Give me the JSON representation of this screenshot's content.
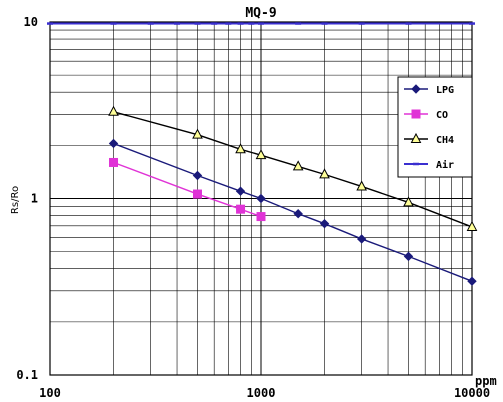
{
  "chart_data": {
    "type": "line",
    "title": "MQ-9",
    "ylabel": "Rs/Ro",
    "xunit": "ppm",
    "x_scale": "log",
    "y_scale": "log",
    "xlim": [
      100,
      10000
    ],
    "ylim": [
      0.1,
      10
    ],
    "x_ticks": [
      "100",
      "1000",
      "10000"
    ],
    "y_ticks": [
      "10",
      "1",
      "0.1"
    ],
    "grid": true,
    "legend_position": "right",
    "series": [
      {
        "name": "LPG",
        "color": "#1a1a7a",
        "marker": "diamond",
        "x": [
          200,
          500,
          800,
          1000,
          1500,
          2000,
          3000,
          5000,
          10000
        ],
        "y": [
          2.05,
          1.35,
          1.1,
          1.0,
          0.82,
          0.72,
          0.59,
          0.47,
          0.34
        ]
      },
      {
        "name": "CO",
        "color": "#e033d6",
        "marker": "square",
        "x": [
          200,
          500,
          800,
          1000
        ],
        "y": [
          1.6,
          1.06,
          0.87,
          0.79
        ]
      },
      {
        "name": "CH4",
        "color": "#000000",
        "marker": "triangle",
        "x": [
          200,
          500,
          800,
          1000,
          1500,
          2000,
          3000,
          5000,
          10000
        ],
        "y": [
          3.1,
          2.3,
          1.9,
          1.76,
          1.52,
          1.37,
          1.17,
          0.95,
          0.69
        ]
      },
      {
        "name": "Air",
        "color": "#3a2fd0",
        "marker": "dash",
        "x": [
          100,
          200,
          300,
          400,
          500,
          600,
          700,
          800,
          900,
          1000,
          1500,
          2000,
          3000,
          5000,
          10000
        ],
        "y": [
          9.8,
          9.8,
          9.8,
          9.8,
          9.8,
          9.8,
          9.8,
          9.8,
          9.8,
          9.8,
          9.8,
          9.8,
          9.8,
          9.8,
          9.8
        ]
      }
    ]
  }
}
